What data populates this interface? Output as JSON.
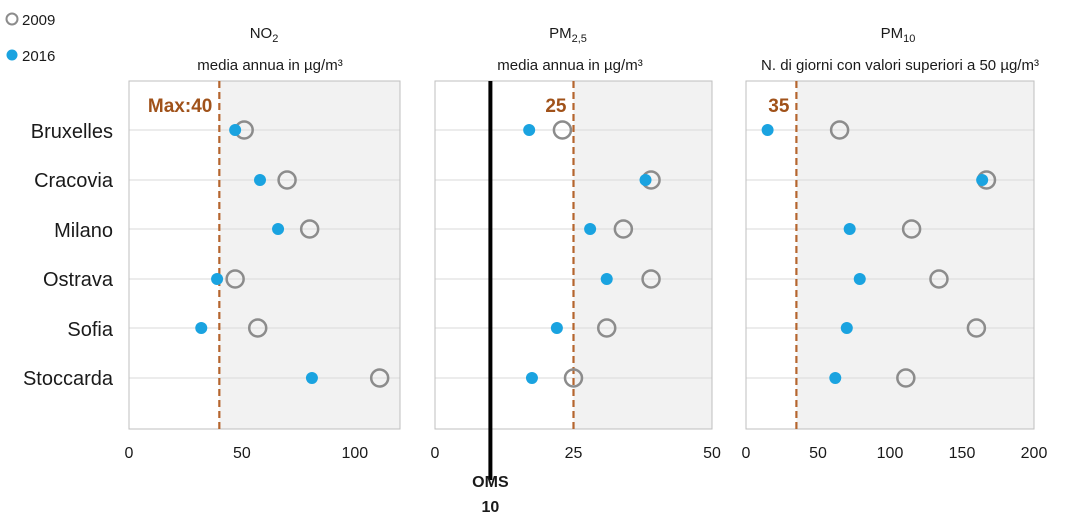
{
  "chart_data": {
    "type": "scatter",
    "categories": [
      "Bruxelles",
      "Cracovia",
      "Milano",
      "Ostrava",
      "Sofia",
      "Stoccarda"
    ],
    "legend": [
      {
        "name": "2009",
        "marker": "hollow-circle",
        "color": "#8c8c8c"
      },
      {
        "name": "2016",
        "marker": "filled-circle",
        "color": "#1aa3e0"
      }
    ],
    "colors": {
      "series_2009": "#8c8c8c",
      "series_2016": "#1aa3e0",
      "limit_line": "#b5652e",
      "limit_text": "#a0521a",
      "shade": "#f2f2f2",
      "grid": "#d9d9d9"
    },
    "panels": [
      {
        "title_main": "NO",
        "title_sub": "2",
        "title_line2": "media annua in µg/m³",
        "xlim": [
          0,
          120
        ],
        "ticks": [
          0,
          50,
          100
        ],
        "limit": {
          "value": 40,
          "label": "Max:40"
        },
        "series": [
          {
            "name": "2009",
            "values": [
              51,
              70,
              80,
              47,
              57,
              111
            ]
          },
          {
            "name": "2016",
            "values": [
              47,
              58,
              66,
              39,
              32,
              81
            ]
          }
        ]
      },
      {
        "title_main": "PM",
        "title_sub": "2,5",
        "title_line2": "media annua in µg/m³",
        "xlim": [
          0,
          50
        ],
        "ticks": [
          0,
          25,
          50
        ],
        "limit": {
          "value": 25,
          "label": "25"
        },
        "who_line": {
          "value": 10,
          "label_line1": "OMS",
          "label_line2": "10"
        },
        "series": [
          {
            "name": "2009",
            "values": [
              23,
              39,
              34,
              39,
              31,
              25
            ]
          },
          {
            "name": "2016",
            "values": [
              17,
              38,
              28,
              31,
              22,
              17.5
            ]
          }
        ]
      },
      {
        "title_main": "PM",
        "title_sub": "10",
        "title_line2": "N. di giorni con valori superiori a 50 µg/m³",
        "xlim": [
          0,
          200
        ],
        "ticks": [
          0,
          50,
          100,
          150,
          200
        ],
        "limit": {
          "value": 35,
          "label": "35"
        },
        "series": [
          {
            "name": "2009",
            "values": [
              65,
              167,
              115,
              134,
              160,
              111
            ]
          },
          {
            "name": "2016",
            "values": [
              15,
              164,
              72,
              79,
              70,
              62
            ]
          }
        ]
      }
    ]
  }
}
